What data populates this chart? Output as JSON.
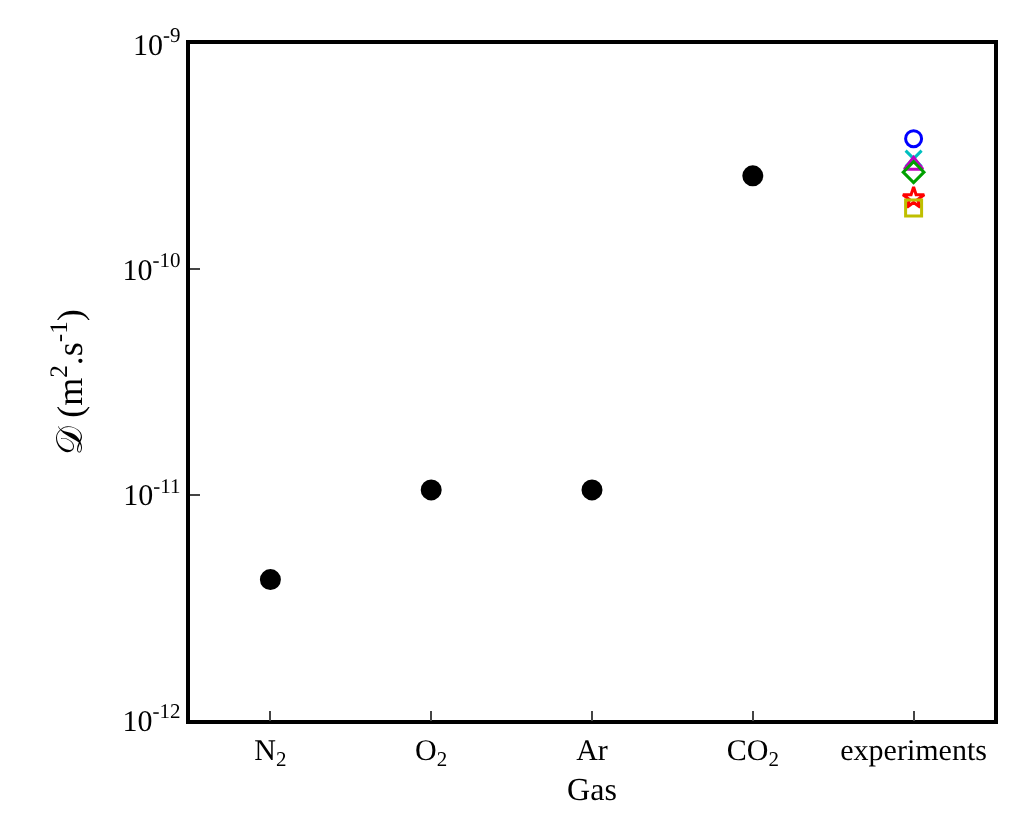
{
  "chart_data": {
    "type": "scatter",
    "xlabel": "Gas",
    "ylabel": "𝒟 (m$^{2}$.s$^{-1}$)",
    "categories": [
      "N$_{2}$",
      "O$_{2}$",
      "Ar",
      "CO$_{2}$",
      "experiments"
    ],
    "log": "y",
    "ylim": [
      1e-12,
      1e-09
    ],
    "marker": "circle",
    "yticks": [
      {
        "value": 1e-12,
        "label": "10$^{-12}$"
      },
      {
        "value": 1e-11,
        "label": "10$^{-11}$"
      },
      {
        "value": 1e-10,
        "label": "10$^{-10}$"
      },
      {
        "value": 1e-09,
        "label": "10$^{-9}$"
      }
    ],
    "series": [
      {
        "color": "#000000",
        "values": [
          4.2e-12,
          1.05e-11,
          1.05e-11,
          2.6e-10,
          null
        ]
      },
      {
        "color": "#0000ff",
        "marker": "circle",
        "values": [
          null,
          null,
          null,
          null,
          3.8e-10
        ]
      },
      {
        "color": "#00bfbf",
        "marker": "cross",
        "values": [
          null,
          null,
          null,
          null,
          3.1e-10
        ]
      },
      {
        "color": "#bf00bf",
        "marker": "triangle",
        "values": [
          null,
          null,
          null,
          null,
          2.9e-10
        ]
      },
      {
        "color": "#00a000",
        "marker": "diamond",
        "values": [
          null,
          null,
          null,
          null,
          2.7e-10
        ]
      },
      {
        "color": "#ff0000",
        "marker": "star",
        "values": [
          null,
          null,
          null,
          null,
          2.07e-10
        ]
      },
      {
        "color": "#bfbf00",
        "marker": "square",
        "values": [
          null,
          null,
          null,
          null,
          1.87e-10
        ]
      }
    ]
  }
}
